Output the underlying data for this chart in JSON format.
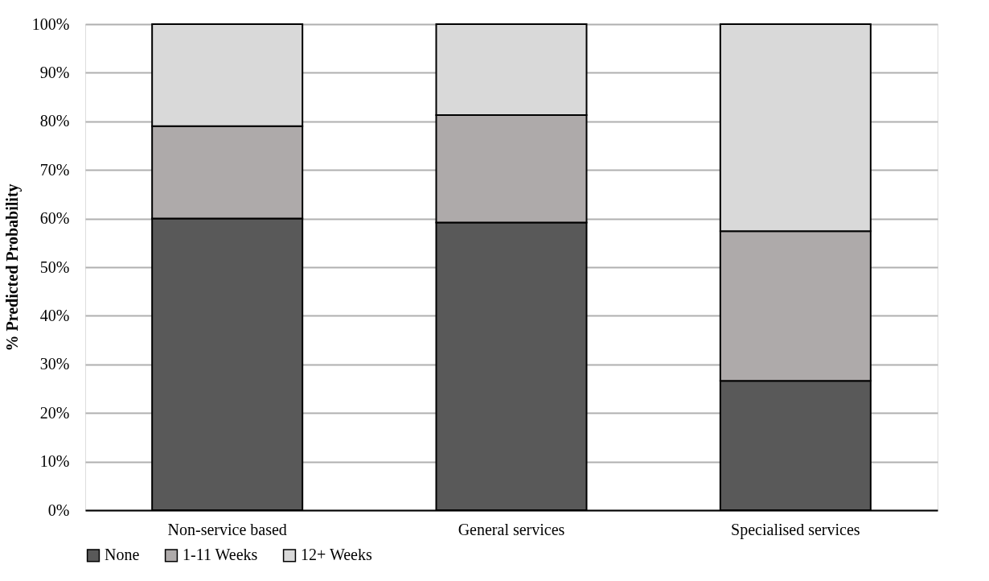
{
  "chart_data": {
    "type": "bar",
    "stacked": true,
    "ylabel": "% Predicted Probability",
    "categories": [
      "Non-service based",
      "General services",
      "Specialised services"
    ],
    "series": [
      {
        "name": "None",
        "color": "#595959",
        "values": [
          60,
          59.2,
          26.6
        ]
      },
      {
        "name": "1-11 Weeks",
        "color": "#aeaaaa",
        "values": [
          19,
          22.1,
          30.8
        ]
      },
      {
        "name": "12+ Weeks",
        "color": "#d9d9d9",
        "values": [
          21,
          18.7,
          42.6
        ]
      }
    ],
    "ylim": [
      0,
      100
    ],
    "yticks": [
      {
        "value": 0,
        "label": "0%"
      },
      {
        "value": 10,
        "label": "10%"
      },
      {
        "value": 20,
        "label": "20%"
      },
      {
        "value": 30,
        "label": "30%"
      },
      {
        "value": 40,
        "label": "40%"
      },
      {
        "value": 50,
        "label": "50%"
      },
      {
        "value": 60,
        "label": "60%"
      },
      {
        "value": 70,
        "label": "70%"
      },
      {
        "value": 80,
        "label": "80%"
      },
      {
        "value": 90,
        "label": "90%"
      },
      {
        "value": 100,
        "label": "100%"
      }
    ],
    "grid": "y",
    "legend": "bottom"
  }
}
